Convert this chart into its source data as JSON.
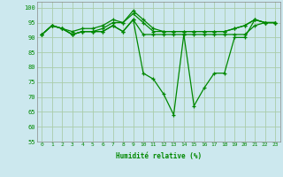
{
  "xlabel": "Humidité relative (%)",
  "bg_color": "#cce8ee",
  "grid_color": "#aaccaa",
  "line_color": "#008800",
  "ylim": [
    55,
    102
  ],
  "xlim": [
    -0.5,
    23.5
  ],
  "yticks": [
    55,
    60,
    65,
    70,
    75,
    80,
    85,
    90,
    95,
    100
  ],
  "xticks": [
    0,
    1,
    2,
    3,
    4,
    5,
    6,
    7,
    8,
    9,
    10,
    11,
    12,
    13,
    14,
    15,
    16,
    17,
    18,
    19,
    20,
    21,
    22,
    23
  ],
  "series": [
    [
      91,
      94,
      93,
      92,
      93,
      93,
      94,
      96,
      95,
      99,
      96,
      93,
      92,
      92,
      92,
      92,
      92,
      92,
      92,
      93,
      94,
      96,
      95,
      95
    ],
    [
      91,
      94,
      93,
      91,
      92,
      92,
      93,
      95,
      95,
      98,
      95,
      92,
      92,
      92,
      92,
      92,
      92,
      92,
      92,
      93,
      94,
      96,
      95,
      95
    ],
    [
      91,
      94,
      93,
      91,
      92,
      92,
      92,
      94,
      92,
      96,
      91,
      91,
      91,
      91,
      91,
      91,
      91,
      91,
      91,
      91,
      91,
      94,
      95,
      95
    ],
    [
      91,
      94,
      93,
      91,
      92,
      92,
      92,
      94,
      92,
      96,
      78,
      76,
      71,
      64,
      91,
      67,
      73,
      78,
      78,
      90,
      90,
      96,
      95,
      95
    ]
  ]
}
